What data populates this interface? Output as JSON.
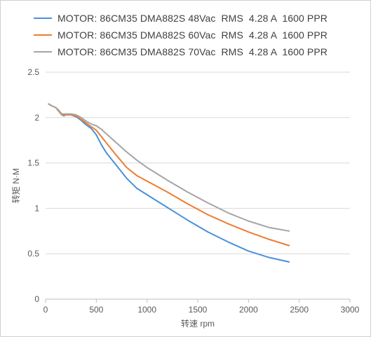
{
  "chart_data": {
    "type": "line",
    "xlabel": "转速 rpm",
    "ylabel": "转矩 N·M",
    "xlim": [
      0,
      3000
    ],
    "ylim": [
      0,
      2.5
    ],
    "xticks": [
      0,
      500,
      1000,
      1500,
      2000,
      2500,
      3000
    ],
    "yticks": [
      0,
      0.5,
      1,
      1.5,
      2,
      2.5
    ],
    "xtick_labels": [
      "0",
      "500",
      "1000",
      "1500",
      "2000",
      "2500",
      "3000"
    ],
    "ytick_labels": [
      "0",
      "0.5",
      "1",
      "1.5",
      "2",
      "2.5"
    ],
    "grid": "horizontal",
    "legend_position": "top",
    "series": [
      {
        "name": "MOTOR: 86CM35 DMA882S 48Vac  RMS  4.28 A  1600 PPR",
        "color": "#4a90d9",
        "x": [
          30,
          60,
          100,
          130,
          160,
          180,
          200,
          250,
          300,
          350,
          400,
          450,
          500,
          550,
          600,
          700,
          800,
          900,
          1000,
          1200,
          1400,
          1600,
          1800,
          2000,
          2200,
          2400
        ],
        "y": [
          2.15,
          2.13,
          2.11,
          2.07,
          2.03,
          2.02,
          2.03,
          2.03,
          2.01,
          1.97,
          1.92,
          1.88,
          1.81,
          1.7,
          1.61,
          1.47,
          1.33,
          1.22,
          1.15,
          1.01,
          0.87,
          0.74,
          0.63,
          0.53,
          0.46,
          0.41
        ]
      },
      {
        "name": "MOTOR: 86CM35 DMA882S 60Vac  RMS  4.28 A  1600 PPR",
        "color": "#ed7d31",
        "x": [
          30,
          60,
          100,
          130,
          160,
          180,
          200,
          250,
          300,
          350,
          400,
          450,
          500,
          550,
          600,
          700,
          800,
          900,
          1000,
          1200,
          1400,
          1600,
          1800,
          2000,
          2200,
          2400
        ],
        "y": [
          2.15,
          2.13,
          2.11,
          2.07,
          2.03,
          2.03,
          2.03,
          2.03,
          2.02,
          1.98,
          1.94,
          1.9,
          1.86,
          1.79,
          1.72,
          1.58,
          1.45,
          1.36,
          1.3,
          1.18,
          1.05,
          0.93,
          0.83,
          0.74,
          0.66,
          0.59
        ]
      },
      {
        "name": "MOTOR: 86CM35 DMA882S 70Vac  RMS  4.28 A  1600 PPR",
        "color": "#a5a5a5",
        "x": [
          30,
          60,
          100,
          130,
          160,
          180,
          200,
          250,
          300,
          350,
          400,
          450,
          500,
          550,
          600,
          700,
          800,
          900,
          1000,
          1200,
          1400,
          1600,
          1800,
          2000,
          2200,
          2400
        ],
        "y": [
          2.15,
          2.13,
          2.11,
          2.08,
          2.04,
          2.04,
          2.04,
          2.04,
          2.03,
          2.0,
          1.96,
          1.93,
          1.91,
          1.87,
          1.82,
          1.72,
          1.62,
          1.53,
          1.45,
          1.31,
          1.18,
          1.06,
          0.95,
          0.86,
          0.79,
          0.75
        ]
      }
    ]
  }
}
